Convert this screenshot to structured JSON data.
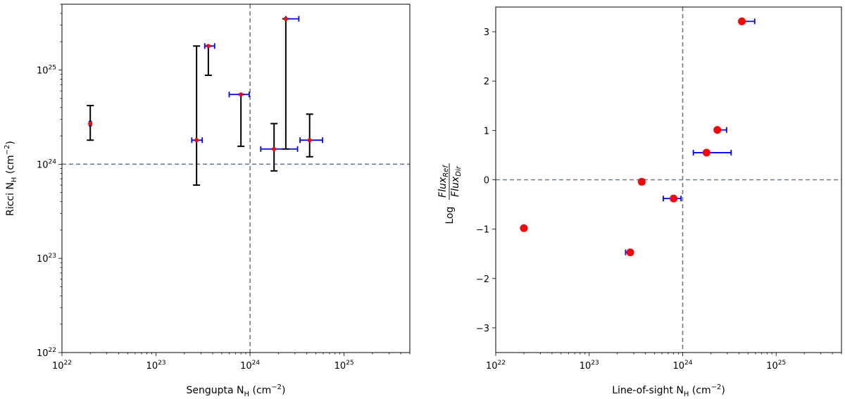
{
  "chart_data": [
    {
      "type": "scatter",
      "title": "",
      "xscale": "log",
      "yscale": "log",
      "xlim": [
        1e+22,
        5e+25
      ],
      "ylim": [
        1e+22,
        5e+25
      ],
      "xticks": [
        {
          "value": 1e+22,
          "exp": "22"
        },
        {
          "value": 1e+23,
          "exp": "23"
        },
        {
          "value": 1e+24,
          "exp": "24"
        },
        {
          "value": 1e+25,
          "exp": "25"
        }
      ],
      "yticks": [
        {
          "value": 1e+22,
          "exp": "22"
        },
        {
          "value": 1e+23,
          "exp": "23"
        },
        {
          "value": 1e+24,
          "exp": "24"
        },
        {
          "value": 1e+25,
          "exp": "25"
        }
      ],
      "tick_base": "10",
      "xlabel": {
        "name": "Sengupta",
        "n": "N",
        "sub": "H",
        "unit_open": " (cm",
        "unit_sup": "−2",
        "unit_close": ")"
      },
      "ylabel": {
        "name": "Ricci",
        "n": "N",
        "sub": "H",
        "unit_open": " (cm",
        "unit_sup": "−2",
        "unit_close": ")"
      },
      "reference_lines": {
        "x": 1e+24,
        "y": 1e+24
      },
      "colors": {
        "marker": "#ff0000",
        "xerr": "#0000ff",
        "yerr": "#000000",
        "reference": "#6b7b8c"
      },
      "points": [
        {
          "x": 2e+22,
          "y": 2.7e+24,
          "xerr": [
            1.95e+22,
            2.05e+22
          ],
          "yerr": [
            1.8e+24,
            4.2e+24
          ]
        },
        {
          "x": 2.7e+23,
          "y": 1.8e+24,
          "xerr": [
            2.4e+23,
            3.1e+23
          ],
          "yerr": [
            6e+23,
            1.8e+25
          ]
        },
        {
          "x": 3.6e+23,
          "y": 1.8e+25,
          "xerr": [
            3.3e+23,
            4.2e+23
          ],
          "yerr": [
            8.8e+24,
            1.8e+25
          ]
        },
        {
          "x": 8e+23,
          "y": 5.5e+24,
          "xerr": [
            6e+23,
            9.8e+23
          ],
          "yerr": [
            1.55e+24,
            5.5e+24
          ]
        },
        {
          "x": 1.8e+24,
          "y": 1.45e+24,
          "xerr": [
            1.3e+24,
            3.2e+24
          ],
          "yerr": [
            8.5e+23,
            2.7e+24
          ]
        },
        {
          "x": 2.4e+24,
          "y": 3.5e+25,
          "xerr": [
            2.4e+24,
            3.3e+24
          ],
          "yerr": [
            1.45e+24,
            3.5e+25
          ]
        },
        {
          "x": 4.3e+24,
          "y": 1.8e+24,
          "xerr": [
            3.4e+24,
            5.9e+24
          ],
          "yerr": [
            1.2e+24,
            3.4e+24
          ]
        }
      ]
    },
    {
      "type": "scatter",
      "title": "",
      "xscale": "log",
      "yscale": "linear",
      "xlim": [
        1e+22,
        5e+25
      ],
      "ylim": [
        -3.5,
        3.5
      ],
      "xticks": [
        {
          "value": 1e+22,
          "exp": "22"
        },
        {
          "value": 1e+23,
          "exp": "23"
        },
        {
          "value": 1e+24,
          "exp": "24"
        },
        {
          "value": 1e+25,
          "exp": "25"
        }
      ],
      "tick_base": "10",
      "yticks": [
        {
          "value": -3,
          "label": "−3"
        },
        {
          "value": -2,
          "label": "−2"
        },
        {
          "value": -1,
          "label": "−1"
        },
        {
          "value": 0,
          "label": "0"
        },
        {
          "value": 1,
          "label": "1"
        },
        {
          "value": 2,
          "label": "2"
        },
        {
          "value": 3,
          "label": "3"
        }
      ],
      "xlabel": {
        "name": "Line-of-sight",
        "n": "N",
        "sub": "H",
        "unit_open": " (cm",
        "unit_sup": "−2",
        "unit_close": ")"
      },
      "ylabel": {
        "log": "Log",
        "num": "Flux",
        "num_sub": "Ref",
        "den": "Flux",
        "den_sub": "Dir"
      },
      "reference_lines": {
        "x": 1e+24,
        "y": 0
      },
      "colors": {
        "marker": "#ff0000",
        "xerr": "#0000ff",
        "reference": "#6b7b8c"
      },
      "points": [
        {
          "x": 2e+22,
          "y": -0.98,
          "xerr": [
            2e+22,
            2e+22
          ]
        },
        {
          "x": 2.75e+23,
          "y": -1.47,
          "xerr": [
            2.45e+23,
            2.9e+23
          ]
        },
        {
          "x": 3.65e+23,
          "y": -0.04,
          "xerr": [
            3.45e+23,
            3.9e+23
          ]
        },
        {
          "x": 8e+23,
          "y": -0.38,
          "xerr": [
            6.2e+23,
            9.6e+23
          ]
        },
        {
          "x": 1.8e+24,
          "y": 0.55,
          "xerr": [
            1.3e+24,
            3.3e+24
          ]
        },
        {
          "x": 2.35e+24,
          "y": 1.01,
          "xerr": [
            2.35e+24,
            2.95e+24
          ]
        },
        {
          "x": 4.3e+24,
          "y": 3.21,
          "xerr": [
            4.3e+24,
            5.9e+24
          ]
        }
      ]
    }
  ]
}
